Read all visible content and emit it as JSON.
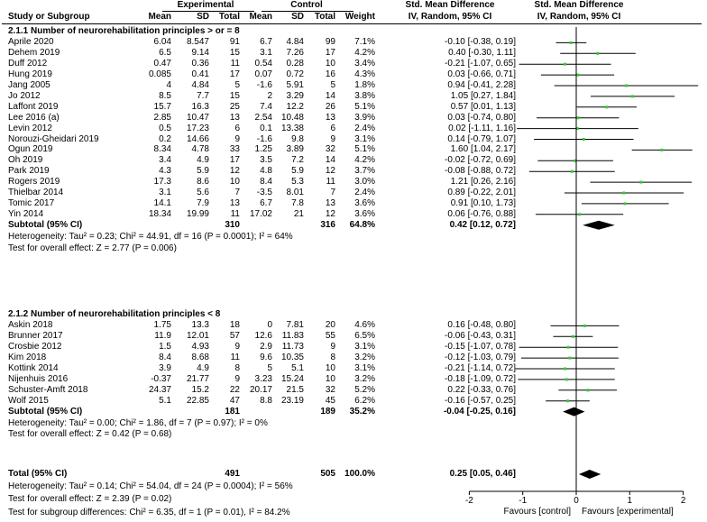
{
  "headers": {
    "experimental": "Experimental",
    "control": "Control",
    "smd_text": "Std. Mean Difference",
    "smd_text_sub": "IV, Random, 95% CI",
    "smd_plot": "Std. Mean Difference",
    "smd_plot_sub": "IV, Random, 95% CI",
    "study": "Study or Subgroup",
    "mean_e": "Mean",
    "sd_e": "SD",
    "total_e": "Total",
    "mean_c": "Mean",
    "sd_c": "SD",
    "total_c": "Total",
    "weight": "Weight"
  },
  "groups": [
    {
      "title": "2.1.1 Number of neurorehabilitation principles > or = 8",
      "studies": [
        {
          "name": "Aprile 2020",
          "m1": "6.04",
          "sd1": "8.547",
          "n1": "91",
          "m2": "6.7",
          "sd2": "4.84",
          "n2": "99",
          "w": "7.1%",
          "ci": "-0.10 [-0.38, 0.19]",
          "est": -0.1,
          "lo": -0.38,
          "hi": 0.19
        },
        {
          "name": "Dehem 2019",
          "m1": "6.5",
          "sd1": "9.14",
          "n1": "15",
          "m2": "3.1",
          "sd2": "7.26",
          "n2": "17",
          "w": "4.2%",
          "ci": "0.40 [-0.30, 1.11]",
          "est": 0.4,
          "lo": -0.3,
          "hi": 1.11
        },
        {
          "name": "Duff 2012",
          "m1": "0.47",
          "sd1": "0.36",
          "n1": "11",
          "m2": "0.54",
          "sd2": "0.28",
          "n2": "10",
          "w": "3.4%",
          "ci": "-0.21 [-1.07, 0.65]",
          "est": -0.21,
          "lo": -1.07,
          "hi": 0.65
        },
        {
          "name": "Hung 2019",
          "m1": "0.085",
          "sd1": "0.41",
          "n1": "17",
          "m2": "0.07",
          "sd2": "0.72",
          "n2": "16",
          "w": "4.3%",
          "ci": "0.03 [-0.66, 0.71]",
          "est": 0.03,
          "lo": -0.66,
          "hi": 0.71
        },
        {
          "name": "Jang 2005",
          "m1": "4",
          "sd1": "4.84",
          "n1": "5",
          "m2": "-1.6",
          "sd2": "5.91",
          "n2": "5",
          "w": "1.8%",
          "ci": "0.94 [-0.41, 2.28]",
          "est": 0.94,
          "lo": -0.41,
          "hi": 2.28
        },
        {
          "name": "Jo 2012",
          "m1": "8.5",
          "sd1": "7.7",
          "n1": "15",
          "m2": "2",
          "sd2": "3.29",
          "n2": "14",
          "w": "3.8%",
          "ci": "1.05 [0.27, 1.84]",
          "est": 1.05,
          "lo": 0.27,
          "hi": 1.84
        },
        {
          "name": "Laffont 2019",
          "m1": "15.7",
          "sd1": "16.3",
          "n1": "25",
          "m2": "7.4",
          "sd2": "12.2",
          "n2": "26",
          "w": "5.1%",
          "ci": "0.57 [0.01, 1.13]",
          "est": 0.57,
          "lo": 0.01,
          "hi": 1.13
        },
        {
          "name": "Lee 2016 (a)",
          "m1": "2.85",
          "sd1": "10.47",
          "n1": "13",
          "m2": "2.54",
          "sd2": "10.48",
          "n2": "13",
          "w": "3.9%",
          "ci": "0.03 [-0.74, 0.80]",
          "est": 0.03,
          "lo": -0.74,
          "hi": 0.8
        },
        {
          "name": "Levin 2012",
          "m1": "0.5",
          "sd1": "17.23",
          "n1": "6",
          "m2": "0.1",
          "sd2": "13.38",
          "n2": "6",
          "w": "2.4%",
          "ci": "0.02 [-1.11, 1.16]",
          "est": 0.02,
          "lo": -1.11,
          "hi": 1.16
        },
        {
          "name": "Norouzi-Gheidari 2019",
          "m1": "0.2",
          "sd1": "14.66",
          "n1": "9",
          "m2": "-1.6",
          "sd2": "9.8",
          "n2": "9",
          "w": "3.1%",
          "ci": "0.14 [-0.79, 1.07]",
          "est": 0.14,
          "lo": -0.79,
          "hi": 1.07
        },
        {
          "name": "Ogun 2019",
          "m1": "8.34",
          "sd1": "4.78",
          "n1": "33",
          "m2": "1.25",
          "sd2": "3.89",
          "n2": "32",
          "w": "5.1%",
          "ci": "1.60 [1.04, 2.17]",
          "est": 1.6,
          "lo": 1.04,
          "hi": 2.17
        },
        {
          "name": "Oh 2019",
          "m1": "3.4",
          "sd1": "4.9",
          "n1": "17",
          "m2": "3.5",
          "sd2": "7.2",
          "n2": "14",
          "w": "4.2%",
          "ci": "-0.02 [-0.72, 0.69]",
          "est": -0.02,
          "lo": -0.72,
          "hi": 0.69
        },
        {
          "name": "Park 2019",
          "m1": "4.3",
          "sd1": "5.9",
          "n1": "12",
          "m2": "4.8",
          "sd2": "5.9",
          "n2": "12",
          "w": "3.7%",
          "ci": "-0.08 [-0.88, 0.72]",
          "est": -0.08,
          "lo": -0.88,
          "hi": 0.72
        },
        {
          "name": "Rogers 2019",
          "m1": "17.3",
          "sd1": "8.6",
          "n1": "10",
          "m2": "8.4",
          "sd2": "5.3",
          "n2": "11",
          "w": "3.0%",
          "ci": "1.21 [0.26, 2.16]",
          "est": 1.21,
          "lo": 0.26,
          "hi": 2.16
        },
        {
          "name": "Thielbar 2014",
          "m1": "3.1",
          "sd1": "5.6",
          "n1": "7",
          "m2": "-3.5",
          "sd2": "8.01",
          "n2": "7",
          "w": "2.4%",
          "ci": "0.89 [-0.22, 2.01]",
          "est": 0.89,
          "lo": -0.22,
          "hi": 2.01
        },
        {
          "name": "Tomic 2017",
          "m1": "14.1",
          "sd1": "7.9",
          "n1": "13",
          "m2": "6.7",
          "sd2": "7.8",
          "n2": "13",
          "w": "3.6%",
          "ci": "0.91 [0.10, 1.73]",
          "est": 0.91,
          "lo": 0.1,
          "hi": 1.73
        },
        {
          "name": "Yin 2014",
          "m1": "18.34",
          "sd1": "19.99",
          "n1": "11",
          "m2": "17.02",
          "sd2": "21",
          "n2": "12",
          "w": "3.6%",
          "ci": "0.06 [-0.76, 0.88]",
          "est": 0.06,
          "lo": -0.76,
          "hi": 0.88
        }
      ],
      "subtotal": {
        "label": "Subtotal (95% CI)",
        "n1": "310",
        "n2": "316",
        "w": "64.8%",
        "ci": "0.42 [0.12, 0.72]",
        "est": 0.42,
        "lo": 0.12,
        "hi": 0.72
      },
      "heterogeneity": "Heterogeneity: Tau² = 0.23; Chi² = 44.91, df = 16 (P = 0.0001); I² = 64%",
      "overall": "Test for overall effect: Z = 2.77 (P = 0.006)"
    },
    {
      "title": "2.1.2 Number of neurorehabilitation principles < 8",
      "studies": [
        {
          "name": "Askin 2018",
          "m1": "1.75",
          "sd1": "13.3",
          "n1": "18",
          "m2": "0",
          "sd2": "7.81",
          "n2": "20",
          "w": "4.6%",
          "ci": "0.16 [-0.48, 0.80]",
          "est": 0.16,
          "lo": -0.48,
          "hi": 0.8
        },
        {
          "name": "Brunner 2017",
          "m1": "11.9",
          "sd1": "12.01",
          "n1": "57",
          "m2": "12.6",
          "sd2": "11.83",
          "n2": "55",
          "w": "6.5%",
          "ci": "-0.06 [-0.43, 0.31]",
          "est": -0.06,
          "lo": -0.43,
          "hi": 0.31
        },
        {
          "name": "Crosbie 2012",
          "m1": "1.5",
          "sd1": "4.93",
          "n1": "9",
          "m2": "2.9",
          "sd2": "11.73",
          "n2": "9",
          "w": "3.1%",
          "ci": "-0.15 [-1.07, 0.78]",
          "est": -0.15,
          "lo": -1.07,
          "hi": 0.78
        },
        {
          "name": "Kim 2018",
          "m1": "8.4",
          "sd1": "8.68",
          "n1": "11",
          "m2": "9.6",
          "sd2": "10.35",
          "n2": "8",
          "w": "3.2%",
          "ci": "-0.12 [-1.03, 0.79]",
          "est": -0.12,
          "lo": -1.03,
          "hi": 0.79
        },
        {
          "name": "Kottink 2014",
          "m1": "3.9",
          "sd1": "4.9",
          "n1": "8",
          "m2": "5",
          "sd2": "5.1",
          "n2": "10",
          "w": "3.1%",
          "ci": "-0.21 [-1.14, 0.72]",
          "est": -0.21,
          "lo": -1.14,
          "hi": 0.72
        },
        {
          "name": "Nijenhuis 2016",
          "m1": "-0.37",
          "sd1": "21.77",
          "n1": "9",
          "m2": "3.23",
          "sd2": "15.24",
          "n2": "10",
          "w": "3.2%",
          "ci": "-0.18 [-1.09, 0.72]",
          "est": -0.18,
          "lo": -1.09,
          "hi": 0.72
        },
        {
          "name": "Schuster-Amft 2018",
          "m1": "24.37",
          "sd1": "15.2",
          "n1": "22",
          "m2": "20.17",
          "sd2": "21.5",
          "n2": "32",
          "w": "5.2%",
          "ci": "0.22 [-0.33, 0.76]",
          "est": 0.22,
          "lo": -0.33,
          "hi": 0.76
        },
        {
          "name": "Wolf 2015",
          "m1": "5.1",
          "sd1": "22.85",
          "n1": "47",
          "m2": "8.8",
          "sd2": "23.19",
          "n2": "45",
          "w": "6.2%",
          "ci": "-0.16 [-0.57, 0.25]",
          "est": -0.16,
          "lo": -0.57,
          "hi": 0.25
        }
      ],
      "subtotal": {
        "label": "Subtotal (95% CI)",
        "n1": "181",
        "n2": "189",
        "w": "35.2%",
        "ci": "-0.04 [-0.25, 0.16]",
        "est": -0.04,
        "lo": -0.25,
        "hi": 0.16
      },
      "heterogeneity": "Heterogeneity: Tau² = 0.00; Chi² = 1.86, df = 7 (P = 0.97); I² = 0%",
      "overall": "Test for overall effect: Z = 0.42 (P = 0.68)"
    }
  ],
  "total": {
    "label": "Total (95% CI)",
    "n1": "491",
    "n2": "505",
    "w": "100.0%",
    "ci": "0.25 [0.05, 0.46]",
    "est": 0.25,
    "lo": 0.05,
    "hi": 0.46
  },
  "footer": {
    "heterogeneity": "Heterogeneity: Tau² = 0.14; Chi² = 54.04, df = 24 (P = 0.0004); I² = 56%",
    "overall": "Test for overall effect: Z = 2.39 (P = 0.02)",
    "subgroup": "Test for subgroup differences: Chi² = 6.35, df = 1 (P = 0.01), I² = 84.2%"
  },
  "axis": {
    "ticks": [
      -2,
      -1,
      0,
      1,
      2
    ],
    "tick_labels": [
      "-2",
      "-1",
      "0",
      "1",
      "2"
    ],
    "left_label": "Favours [control]",
    "right_label": "Favours [experimental]"
  },
  "colors": {
    "point": "#33cc33",
    "line": "#000000",
    "diamond": "#000000"
  },
  "chart_data": {
    "type": "forest",
    "title": "Std. Mean Difference IV, Random, 95% CI",
    "xlim": [
      -2,
      2
    ],
    "xticks": [
      -2,
      -1,
      0,
      1,
      2
    ],
    "xlabel_left": "Favours [control]",
    "xlabel_right": "Favours [experimental]",
    "reference_line": 0
  }
}
